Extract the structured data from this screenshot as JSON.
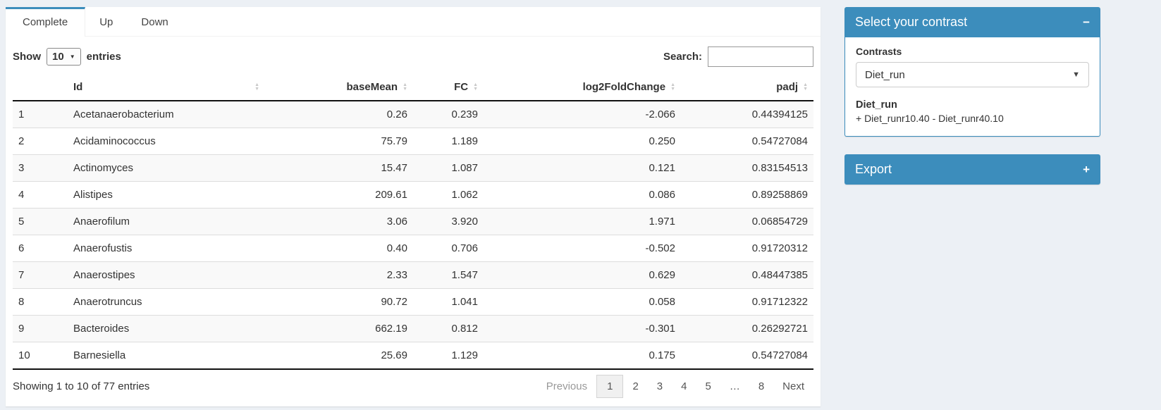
{
  "colors": {
    "accent": "#3c8dbc",
    "page_bg": "#ecf0f5"
  },
  "tabs": {
    "items": [
      {
        "label": "Complete",
        "active": true
      },
      {
        "label": "Up",
        "active": false
      },
      {
        "label": "Down",
        "active": false
      }
    ]
  },
  "table_controls": {
    "show_label": "Show",
    "page_length": "10",
    "entries_label": "entries",
    "search_label": "Search:",
    "search_value": ""
  },
  "table": {
    "columns": [
      {
        "key": "index",
        "label": "",
        "align": "left",
        "sortable": false
      },
      {
        "key": "id",
        "label": "Id",
        "align": "left",
        "sortable": true
      },
      {
        "key": "baseMean",
        "label": "baseMean",
        "align": "right",
        "sortable": true
      },
      {
        "key": "fc",
        "label": "FC",
        "align": "right",
        "sortable": true
      },
      {
        "key": "log2fc",
        "label": "log2FoldChange",
        "align": "right",
        "sortable": true
      },
      {
        "key": "padj",
        "label": "padj",
        "align": "right",
        "sortable": true
      }
    ],
    "row_keys": [
      "index",
      "id",
      "baseMean",
      "fc",
      "log2fc",
      "padj"
    ],
    "rows": [
      {
        "index": "1",
        "id": "Acetanaerobacterium",
        "baseMean": "0.26",
        "fc": "0.239",
        "log2fc": "-2.066",
        "padj": "0.44394125"
      },
      {
        "index": "2",
        "id": "Acidaminococcus",
        "baseMean": "75.79",
        "fc": "1.189",
        "log2fc": "0.250",
        "padj": "0.54727084"
      },
      {
        "index": "3",
        "id": "Actinomyces",
        "baseMean": "15.47",
        "fc": "1.087",
        "log2fc": "0.121",
        "padj": "0.83154513"
      },
      {
        "index": "4",
        "id": "Alistipes",
        "baseMean": "209.61",
        "fc": "1.062",
        "log2fc": "0.086",
        "padj": "0.89258869"
      },
      {
        "index": "5",
        "id": "Anaerofilum",
        "baseMean": "3.06",
        "fc": "3.920",
        "log2fc": "1.971",
        "padj": "0.06854729"
      },
      {
        "index": "6",
        "id": "Anaerofustis",
        "baseMean": "0.40",
        "fc": "0.706",
        "log2fc": "-0.502",
        "padj": "0.91720312"
      },
      {
        "index": "7",
        "id": "Anaerostipes",
        "baseMean": "2.33",
        "fc": "1.547",
        "log2fc": "0.629",
        "padj": "0.48447385"
      },
      {
        "index": "8",
        "id": "Anaerotruncus",
        "baseMean": "90.72",
        "fc": "1.041",
        "log2fc": "0.058",
        "padj": "0.91712322"
      },
      {
        "index": "9",
        "id": "Bacteroides",
        "baseMean": "662.19",
        "fc": "0.812",
        "log2fc": "-0.301",
        "padj": "0.26292721"
      },
      {
        "index": "10",
        "id": "Barnesiella",
        "baseMean": "25.69",
        "fc": "1.129",
        "log2fc": "0.175",
        "padj": "0.54727084"
      }
    ]
  },
  "table_footer": {
    "info": "Showing 1 to 10 of 77 entries",
    "pagination": {
      "previous": "Previous",
      "pages": [
        "1",
        "2",
        "3",
        "4",
        "5",
        "…",
        "8"
      ],
      "current": "1",
      "next": "Next"
    }
  },
  "contrast_panel": {
    "title": "Select your contrast",
    "collapse_icon": "−",
    "contrasts_label": "Contrasts",
    "selected_contrast": "Diet_run",
    "contrast_name": "Diet_run",
    "contrast_formula": "+ Diet_runr10.40 - Diet_runr40.10"
  },
  "export_panel": {
    "title": "Export",
    "expand_icon": "+"
  }
}
